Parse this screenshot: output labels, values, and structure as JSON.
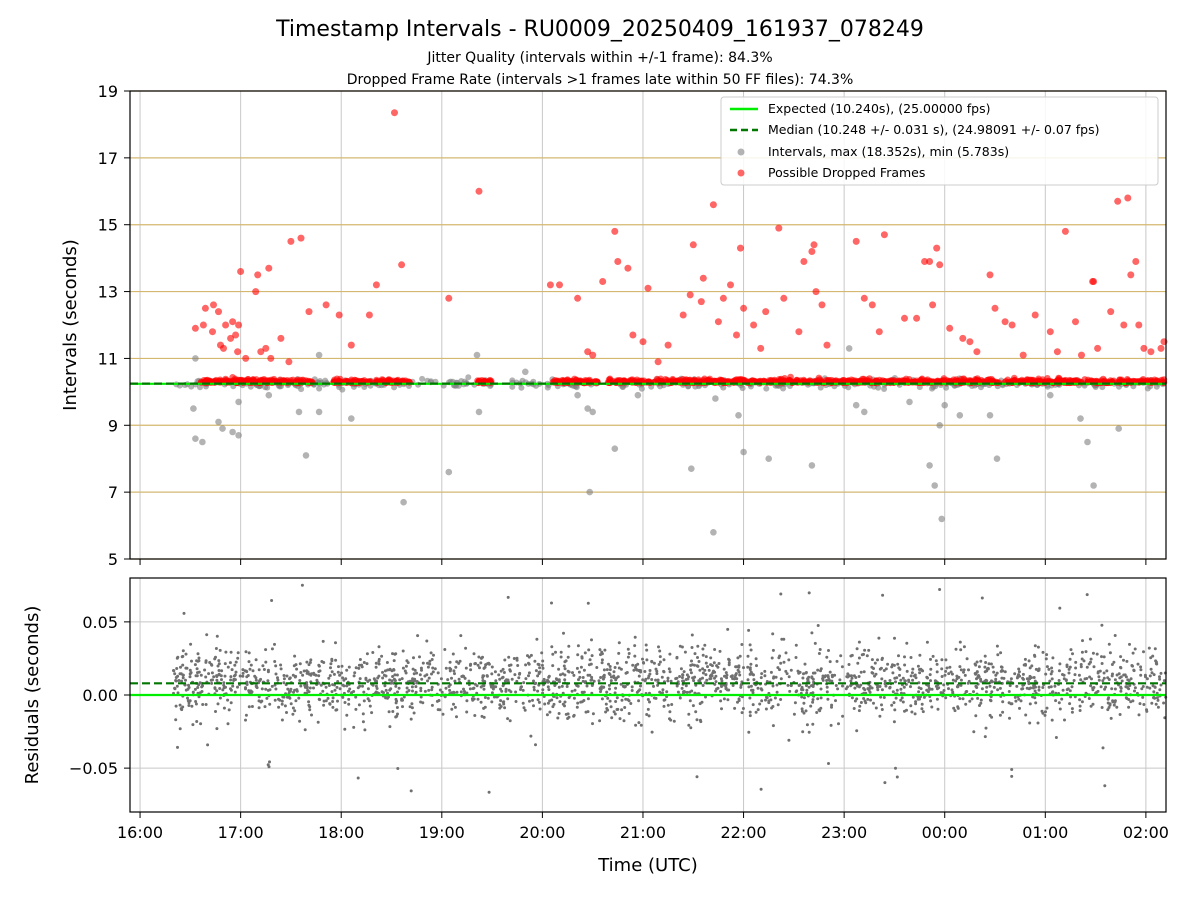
{
  "title": "Timestamp Intervals - RU0009_20250409_161937_078249",
  "subtitle_1": "Jitter Quality (intervals within +/-1 frame): 84.3%",
  "subtitle_2": "Dropped Frame Rate (intervals >1 frames late within 50 FF files): 74.3%",
  "colors": {
    "expected": "#00ee00",
    "median": "#007700",
    "intervals": "#808080",
    "dropped": "#ff0000",
    "hgrid_top": "#d4b870",
    "grid": "#c8c8c8"
  },
  "chart_data": [
    {
      "type": "scatter",
      "ylabel": "Intervals (seconds)",
      "ylim": [
        5,
        19
      ],
      "yticks": [
        "5",
        "7",
        "9",
        "11",
        "13",
        "15",
        "17",
        "19"
      ],
      "xlim_hours": [
        15.9,
        26.2
      ],
      "grid": true,
      "legend_placement": "top-right",
      "legend": [
        "Expected (10.240s), (25.00000 fps)",
        "Median (10.248 +/- 0.031 s), (24.98091 +/- 0.07 fps)",
        "Intervals, max (18.352s), min (5.783s)",
        "Possible Dropped Frames"
      ],
      "expected_interval": 10.24,
      "median_interval": 10.248,
      "observation_range_hours": [
        16.33,
        26.2
      ],
      "dropped_frames": [
        [
          16.55,
          11.9
        ],
        [
          16.63,
          12.0
        ],
        [
          16.65,
          12.5
        ],
        [
          16.72,
          11.8
        ],
        [
          16.73,
          12.6
        ],
        [
          16.78,
          12.4
        ],
        [
          16.8,
          11.4
        ],
        [
          16.83,
          11.3
        ],
        [
          16.85,
          12.0
        ],
        [
          16.9,
          11.6
        ],
        [
          16.92,
          12.1
        ],
        [
          16.95,
          11.7
        ],
        [
          16.97,
          11.2
        ],
        [
          16.98,
          12.0
        ],
        [
          17.0,
          13.6
        ],
        [
          17.05,
          11.0
        ],
        [
          17.15,
          13.0
        ],
        [
          17.17,
          13.5
        ],
        [
          17.2,
          11.2
        ],
        [
          17.25,
          11.3
        ],
        [
          17.28,
          13.7
        ],
        [
          17.3,
          11.0
        ],
        [
          17.4,
          11.6
        ],
        [
          17.48,
          10.9
        ],
        [
          17.5,
          14.5
        ],
        [
          17.6,
          14.6
        ],
        [
          17.68,
          12.4
        ],
        [
          17.85,
          12.6
        ],
        [
          17.98,
          12.3
        ],
        [
          18.1,
          11.4
        ],
        [
          18.28,
          12.3
        ],
        [
          18.35,
          13.2
        ],
        [
          18.53,
          18.35
        ],
        [
          18.6,
          13.8
        ],
        [
          19.07,
          12.8
        ],
        [
          19.37,
          16.0
        ],
        [
          20.08,
          13.2
        ],
        [
          20.17,
          13.2
        ],
        [
          20.35,
          12.8
        ],
        [
          20.45,
          11.2
        ],
        [
          20.5,
          11.1
        ],
        [
          20.6,
          13.3
        ],
        [
          20.72,
          14.8
        ],
        [
          20.75,
          13.9
        ],
        [
          20.85,
          13.7
        ],
        [
          20.9,
          11.7
        ],
        [
          21.0,
          11.5
        ],
        [
          21.05,
          13.1
        ],
        [
          21.15,
          10.9
        ],
        [
          21.25,
          11.4
        ],
        [
          21.4,
          12.3
        ],
        [
          21.47,
          12.9
        ],
        [
          21.5,
          14.4
        ],
        [
          21.58,
          12.7
        ],
        [
          21.6,
          13.4
        ],
        [
          21.7,
          15.6
        ],
        [
          21.75,
          12.1
        ],
        [
          21.8,
          12.8
        ],
        [
          21.87,
          13.2
        ],
        [
          21.97,
          14.3
        ],
        [
          21.93,
          11.7
        ],
        [
          22.0,
          12.5
        ],
        [
          22.1,
          12.0
        ],
        [
          22.17,
          11.3
        ],
        [
          22.22,
          12.4
        ],
        [
          22.35,
          14.9
        ],
        [
          22.4,
          12.8
        ],
        [
          22.55,
          11.8
        ],
        [
          22.6,
          13.9
        ],
        [
          22.68,
          14.2
        ],
        [
          22.7,
          14.4
        ],
        [
          22.72,
          13.0
        ],
        [
          22.78,
          12.6
        ],
        [
          22.83,
          11.4
        ],
        [
          23.12,
          14.5
        ],
        [
          23.2,
          12.8
        ],
        [
          23.28,
          12.6
        ],
        [
          23.35,
          11.8
        ],
        [
          23.4,
          14.7
        ],
        [
          23.6,
          12.2
        ],
        [
          23.72,
          12.2
        ],
        [
          23.8,
          13.9
        ],
        [
          23.85,
          13.9
        ],
        [
          23.88,
          12.6
        ],
        [
          23.92,
          14.3
        ],
        [
          23.95,
          13.8
        ],
        [
          24.05,
          11.9
        ],
        [
          24.18,
          11.6
        ],
        [
          24.25,
          11.5
        ],
        [
          24.32,
          11.2
        ],
        [
          24.45,
          13.5
        ],
        [
          24.5,
          12.5
        ],
        [
          24.6,
          12.1
        ],
        [
          24.67,
          12.0
        ],
        [
          24.78,
          11.1
        ],
        [
          24.9,
          12.3
        ],
        [
          25.05,
          11.8
        ],
        [
          25.12,
          11.2
        ],
        [
          25.2,
          14.8
        ],
        [
          25.3,
          12.1
        ],
        [
          25.36,
          11.1
        ],
        [
          25.47,
          13.3
        ],
        [
          25.48,
          13.3
        ],
        [
          25.52,
          11.3
        ],
        [
          25.65,
          12.4
        ],
        [
          25.72,
          15.7
        ],
        [
          25.78,
          12.0
        ],
        [
          25.82,
          15.8
        ],
        [
          25.85,
          13.5
        ],
        [
          25.9,
          13.9
        ],
        [
          25.93,
          12.0
        ],
        [
          25.98,
          11.3
        ],
        [
          26.05,
          11.2
        ],
        [
          26.15,
          11.3
        ],
        [
          26.18,
          11.5
        ]
      ],
      "interval_outliers": [
        [
          16.53,
          9.5
        ],
        [
          16.55,
          8.6
        ],
        [
          16.62,
          8.5
        ],
        [
          16.78,
          9.1
        ],
        [
          16.82,
          8.9
        ],
        [
          16.92,
          8.8
        ],
        [
          16.98,
          8.7
        ],
        [
          16.98,
          9.7
        ],
        [
          17.28,
          9.9
        ],
        [
          17.58,
          9.4
        ],
        [
          17.65,
          8.1
        ],
        [
          17.78,
          9.4
        ],
        [
          18.1,
          9.2
        ],
        [
          18.62,
          6.7
        ],
        [
          19.07,
          7.6
        ],
        [
          19.37,
          9.4
        ],
        [
          20.35,
          9.9
        ],
        [
          20.45,
          9.5
        ],
        [
          20.47,
          7.0
        ],
        [
          20.5,
          9.4
        ],
        [
          20.72,
          8.3
        ],
        [
          20.95,
          9.9
        ],
        [
          21.48,
          7.7
        ],
        [
          21.72,
          9.8
        ],
        [
          21.7,
          5.8
        ],
        [
          21.95,
          9.3
        ],
        [
          22.0,
          8.2
        ],
        [
          22.25,
          8.0
        ],
        [
          22.68,
          7.8
        ],
        [
          23.12,
          9.6
        ],
        [
          23.2,
          9.4
        ],
        [
          23.65,
          9.7
        ],
        [
          23.85,
          7.8
        ],
        [
          23.9,
          7.2
        ],
        [
          23.95,
          9.0
        ],
        [
          23.97,
          6.2
        ],
        [
          24.0,
          9.6
        ],
        [
          24.15,
          9.3
        ],
        [
          24.45,
          9.3
        ],
        [
          24.52,
          8.0
        ],
        [
          25.05,
          9.9
        ],
        [
          25.35,
          9.2
        ],
        [
          25.42,
          8.5
        ],
        [
          25.48,
          7.2
        ],
        [
          25.73,
          8.9
        ],
        [
          16.55,
          11.0
        ],
        [
          17.78,
          11.1
        ],
        [
          19.35,
          11.1
        ],
        [
          19.83,
          10.6
        ],
        [
          23.05,
          11.3
        ]
      ]
    },
    {
      "type": "scatter",
      "xlabel": "Time (UTC)",
      "ylabel": "Residuals (seconds)",
      "ylim": [
        -0.08,
        0.08
      ],
      "yticks": [
        "−0.05",
        "0.00",
        "0.05"
      ],
      "xticks": [
        "16:00",
        "17:00",
        "18:00",
        "19:00",
        "20:00",
        "21:00",
        "22:00",
        "23:00",
        "00:00",
        "01:00",
        "02:00"
      ],
      "expected_residual": 0.0,
      "median_residual": 0.008,
      "residual_spread_sd": 0.012
    }
  ]
}
